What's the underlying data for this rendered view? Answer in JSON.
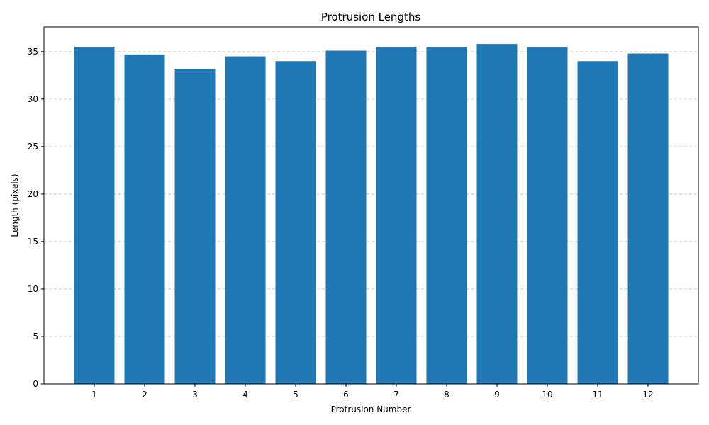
{
  "chart_data": {
    "type": "bar",
    "title": "Protrusion Lengths",
    "xlabel": "Protrusion Number",
    "ylabel": "Length (pixels)",
    "categories": [
      "1",
      "2",
      "3",
      "4",
      "5",
      "6",
      "7",
      "8",
      "9",
      "10",
      "11",
      "12"
    ],
    "values": [
      35.5,
      34.7,
      33.2,
      34.5,
      34.0,
      35.1,
      35.5,
      35.5,
      35.8,
      35.5,
      34.0,
      34.8
    ],
    "ylim": [
      0,
      37.6
    ],
    "yticks": [
      0,
      5,
      10,
      15,
      20,
      25,
      30,
      35
    ],
    "grid": {
      "axis": "y",
      "style": "dashed",
      "visible": true
    },
    "legend": "none",
    "colors": {
      "bar": "#1f77b4",
      "grid": "#c0c0c0",
      "axis": "#000000"
    }
  }
}
